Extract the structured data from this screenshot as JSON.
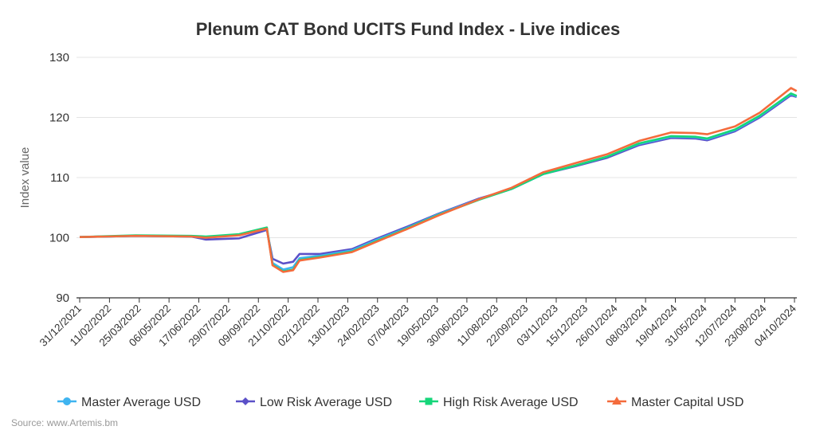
{
  "chart_data": {
    "type": "line",
    "title": "Plenum CAT Bond UCITS Fund Index - Live indices",
    "ylabel": "Index value",
    "xlabel": "",
    "ylim": [
      90,
      130
    ],
    "yticks": [
      90,
      100,
      110,
      120,
      130
    ],
    "xlim": [
      "2021-12-31",
      "2024-10-04"
    ],
    "xticks": [
      "31/12/2021",
      "11/02/2022",
      "25/03/2022",
      "06/05/2022",
      "17/06/2022",
      "29/07/2022",
      "09/09/2022",
      "21/10/2022",
      "02/12/2022",
      "13/01/2023",
      "24/02/2023",
      "07/04/2023",
      "19/05/2023",
      "30/06/2023",
      "11/08/2023",
      "22/09/2023",
      "03/11/2023",
      "15/12/2023",
      "26/01/2024",
      "08/03/2024",
      "19/04/2024",
      "31/05/2024",
      "12/07/2024",
      "23/08/2024",
      "04/10/2024"
    ],
    "grid": true,
    "legend": "bottom",
    "x": [
      "2021-12-31",
      "2022-03-20",
      "2022-06-06",
      "2022-06-27",
      "2022-08-13",
      "2022-09-21",
      "2022-09-29",
      "2022-10-14",
      "2022-10-28",
      "2022-11-06",
      "2022-12-05",
      "2023-01-19",
      "2023-02-22",
      "2023-04-06",
      "2023-05-21",
      "2023-07-17",
      "2023-09-01",
      "2023-10-16",
      "2023-11-30",
      "2024-01-14",
      "2024-02-28",
      "2024-04-13",
      "2024-05-17",
      "2024-06-03",
      "2024-07-12",
      "2024-08-16",
      "2024-09-29",
      "2024-10-07"
    ],
    "series": [
      {
        "name": "Master Average USD",
        "color": "#3fb4f0",
        "marker": "circle",
        "values": [
          100.1,
          100.3,
          100.2,
          100.0,
          100.5,
          101.5,
          95.8,
          94.7,
          95.1,
          96.6,
          97.0,
          97.9,
          99.6,
          101.6,
          103.9,
          106.4,
          108.1,
          110.6,
          112.0,
          113.5,
          115.6,
          116.8,
          116.7,
          116.4,
          117.9,
          120.2,
          123.9,
          123.5
        ]
      },
      {
        "name": "Low Risk Average USD",
        "color": "#5b50c8",
        "marker": "diamond",
        "values": [
          100.1,
          100.3,
          100.2,
          99.7,
          99.9,
          101.3,
          96.5,
          95.7,
          96.0,
          97.3,
          97.3,
          98.1,
          99.8,
          101.8,
          104.0,
          106.5,
          108.1,
          110.6,
          111.9,
          113.3,
          115.4,
          116.6,
          116.5,
          116.2,
          117.7,
          120.0,
          123.7,
          123.4
        ]
      },
      {
        "name": "High Risk Average USD",
        "color": "#16d67a",
        "marker": "square",
        "values": [
          100.1,
          100.4,
          100.3,
          100.2,
          100.6,
          101.7,
          95.5,
          94.4,
          94.7,
          96.3,
          96.8,
          97.7,
          99.4,
          101.5,
          103.8,
          106.3,
          108.1,
          110.6,
          112.0,
          113.5,
          115.7,
          116.9,
          116.8,
          116.5,
          118.0,
          120.3,
          124.0,
          123.6
        ]
      },
      {
        "name": "Master Capital USD",
        "color": "#f46b3c",
        "marker": "triangle",
        "values": [
          100.1,
          100.3,
          100.2,
          100.0,
          100.4,
          101.5,
          95.4,
          94.3,
          94.6,
          96.2,
          96.7,
          97.6,
          99.3,
          101.4,
          103.7,
          106.4,
          108.3,
          110.9,
          112.4,
          113.9,
          116.1,
          117.5,
          117.4,
          117.2,
          118.5,
          120.8,
          124.9,
          124.4
        ]
      }
    ]
  },
  "source": "Source: www.Artemis.bm"
}
